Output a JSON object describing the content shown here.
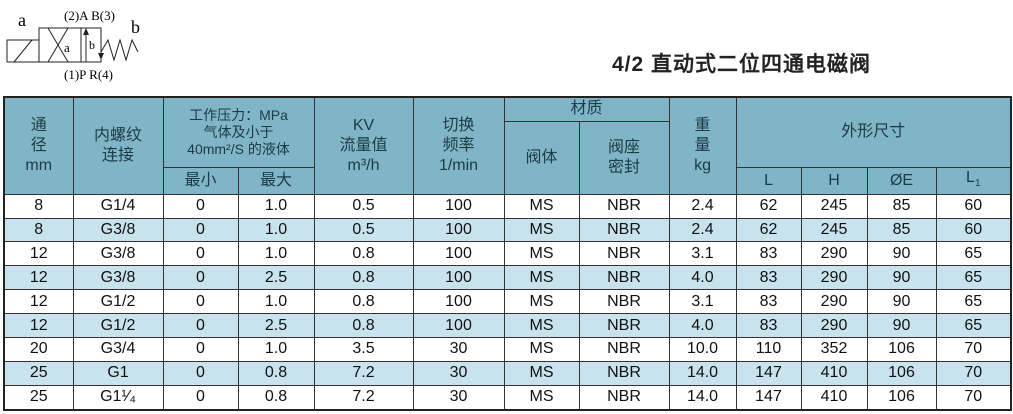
{
  "symbol": {
    "label_a": "a",
    "label_b": "b",
    "top_ports": "(2)A B(3)",
    "bottom_ports": "(1)P R(4)",
    "inner_a": "a",
    "inner_b": "b"
  },
  "title": "4/2 直动式二位四通电磁阀",
  "colors": {
    "header_bg": "#7fb5c6",
    "alt_row_bg": "#c9e3ee"
  },
  "header": {
    "bore": [
      "通",
      "径",
      "mm"
    ],
    "thread": [
      "内螺纹",
      "连接"
    ],
    "pressure": [
      "工作压力：MPa",
      "气体及小于",
      "40mm²/S 的液体"
    ],
    "pressure_min": "最小",
    "pressure_max": "最大",
    "kv": [
      "KV",
      "流量值",
      "m³/h"
    ],
    "freq": [
      "切换",
      "频率",
      "1/min"
    ],
    "material": "材质",
    "body": "阀体",
    "seal": [
      "阀座",
      "密封"
    ],
    "weight": [
      "重",
      "量",
      "kg"
    ],
    "dims": "外形尺寸",
    "L": "L",
    "H": "H",
    "E": "ØE",
    "L1": "L",
    "L1_sub": "1"
  },
  "rows": [
    [
      "8",
      "G1/4",
      "0",
      "1.0",
      "0.5",
      "100",
      "MS",
      "NBR",
      "2.4",
      "62",
      "245",
      "85",
      "60"
    ],
    [
      "8",
      "G3/8",
      "0",
      "1.0",
      "0.5",
      "100",
      "MS",
      "NBR",
      "2.4",
      "62",
      "245",
      "85",
      "60"
    ],
    [
      "12",
      "G3/8",
      "0",
      "1.0",
      "0.8",
      "100",
      "MS",
      "NBR",
      "3.1",
      "83",
      "290",
      "90",
      "65"
    ],
    [
      "12",
      "G3/8",
      "0",
      "2.5",
      "0.8",
      "100",
      "MS",
      "NBR",
      "4.0",
      "83",
      "290",
      "90",
      "65"
    ],
    [
      "12",
      "G1/2",
      "0",
      "1.0",
      "0.8",
      "100",
      "MS",
      "NBR",
      "3.1",
      "83",
      "290",
      "90",
      "65"
    ],
    [
      "12",
      "G1/2",
      "0",
      "2.5",
      "0.8",
      "100",
      "MS",
      "NBR",
      "4.0",
      "83",
      "290",
      "90",
      "65"
    ],
    [
      "20",
      "G3/4",
      "0",
      "1.0",
      "3.5",
      "30",
      "MS",
      "NBR",
      "10.0",
      "110",
      "352",
      "106",
      "70"
    ],
    [
      "25",
      "G1",
      "0",
      "0.8",
      "7.2",
      "30",
      "MS",
      "NBR",
      "14.0",
      "147",
      "410",
      "106",
      "70"
    ],
    [
      "25",
      "G1¹⁄₄",
      "0",
      "0.8",
      "7.2",
      "30",
      "MS",
      "NBR",
      "14.0",
      "147",
      "410",
      "106",
      "70"
    ]
  ]
}
